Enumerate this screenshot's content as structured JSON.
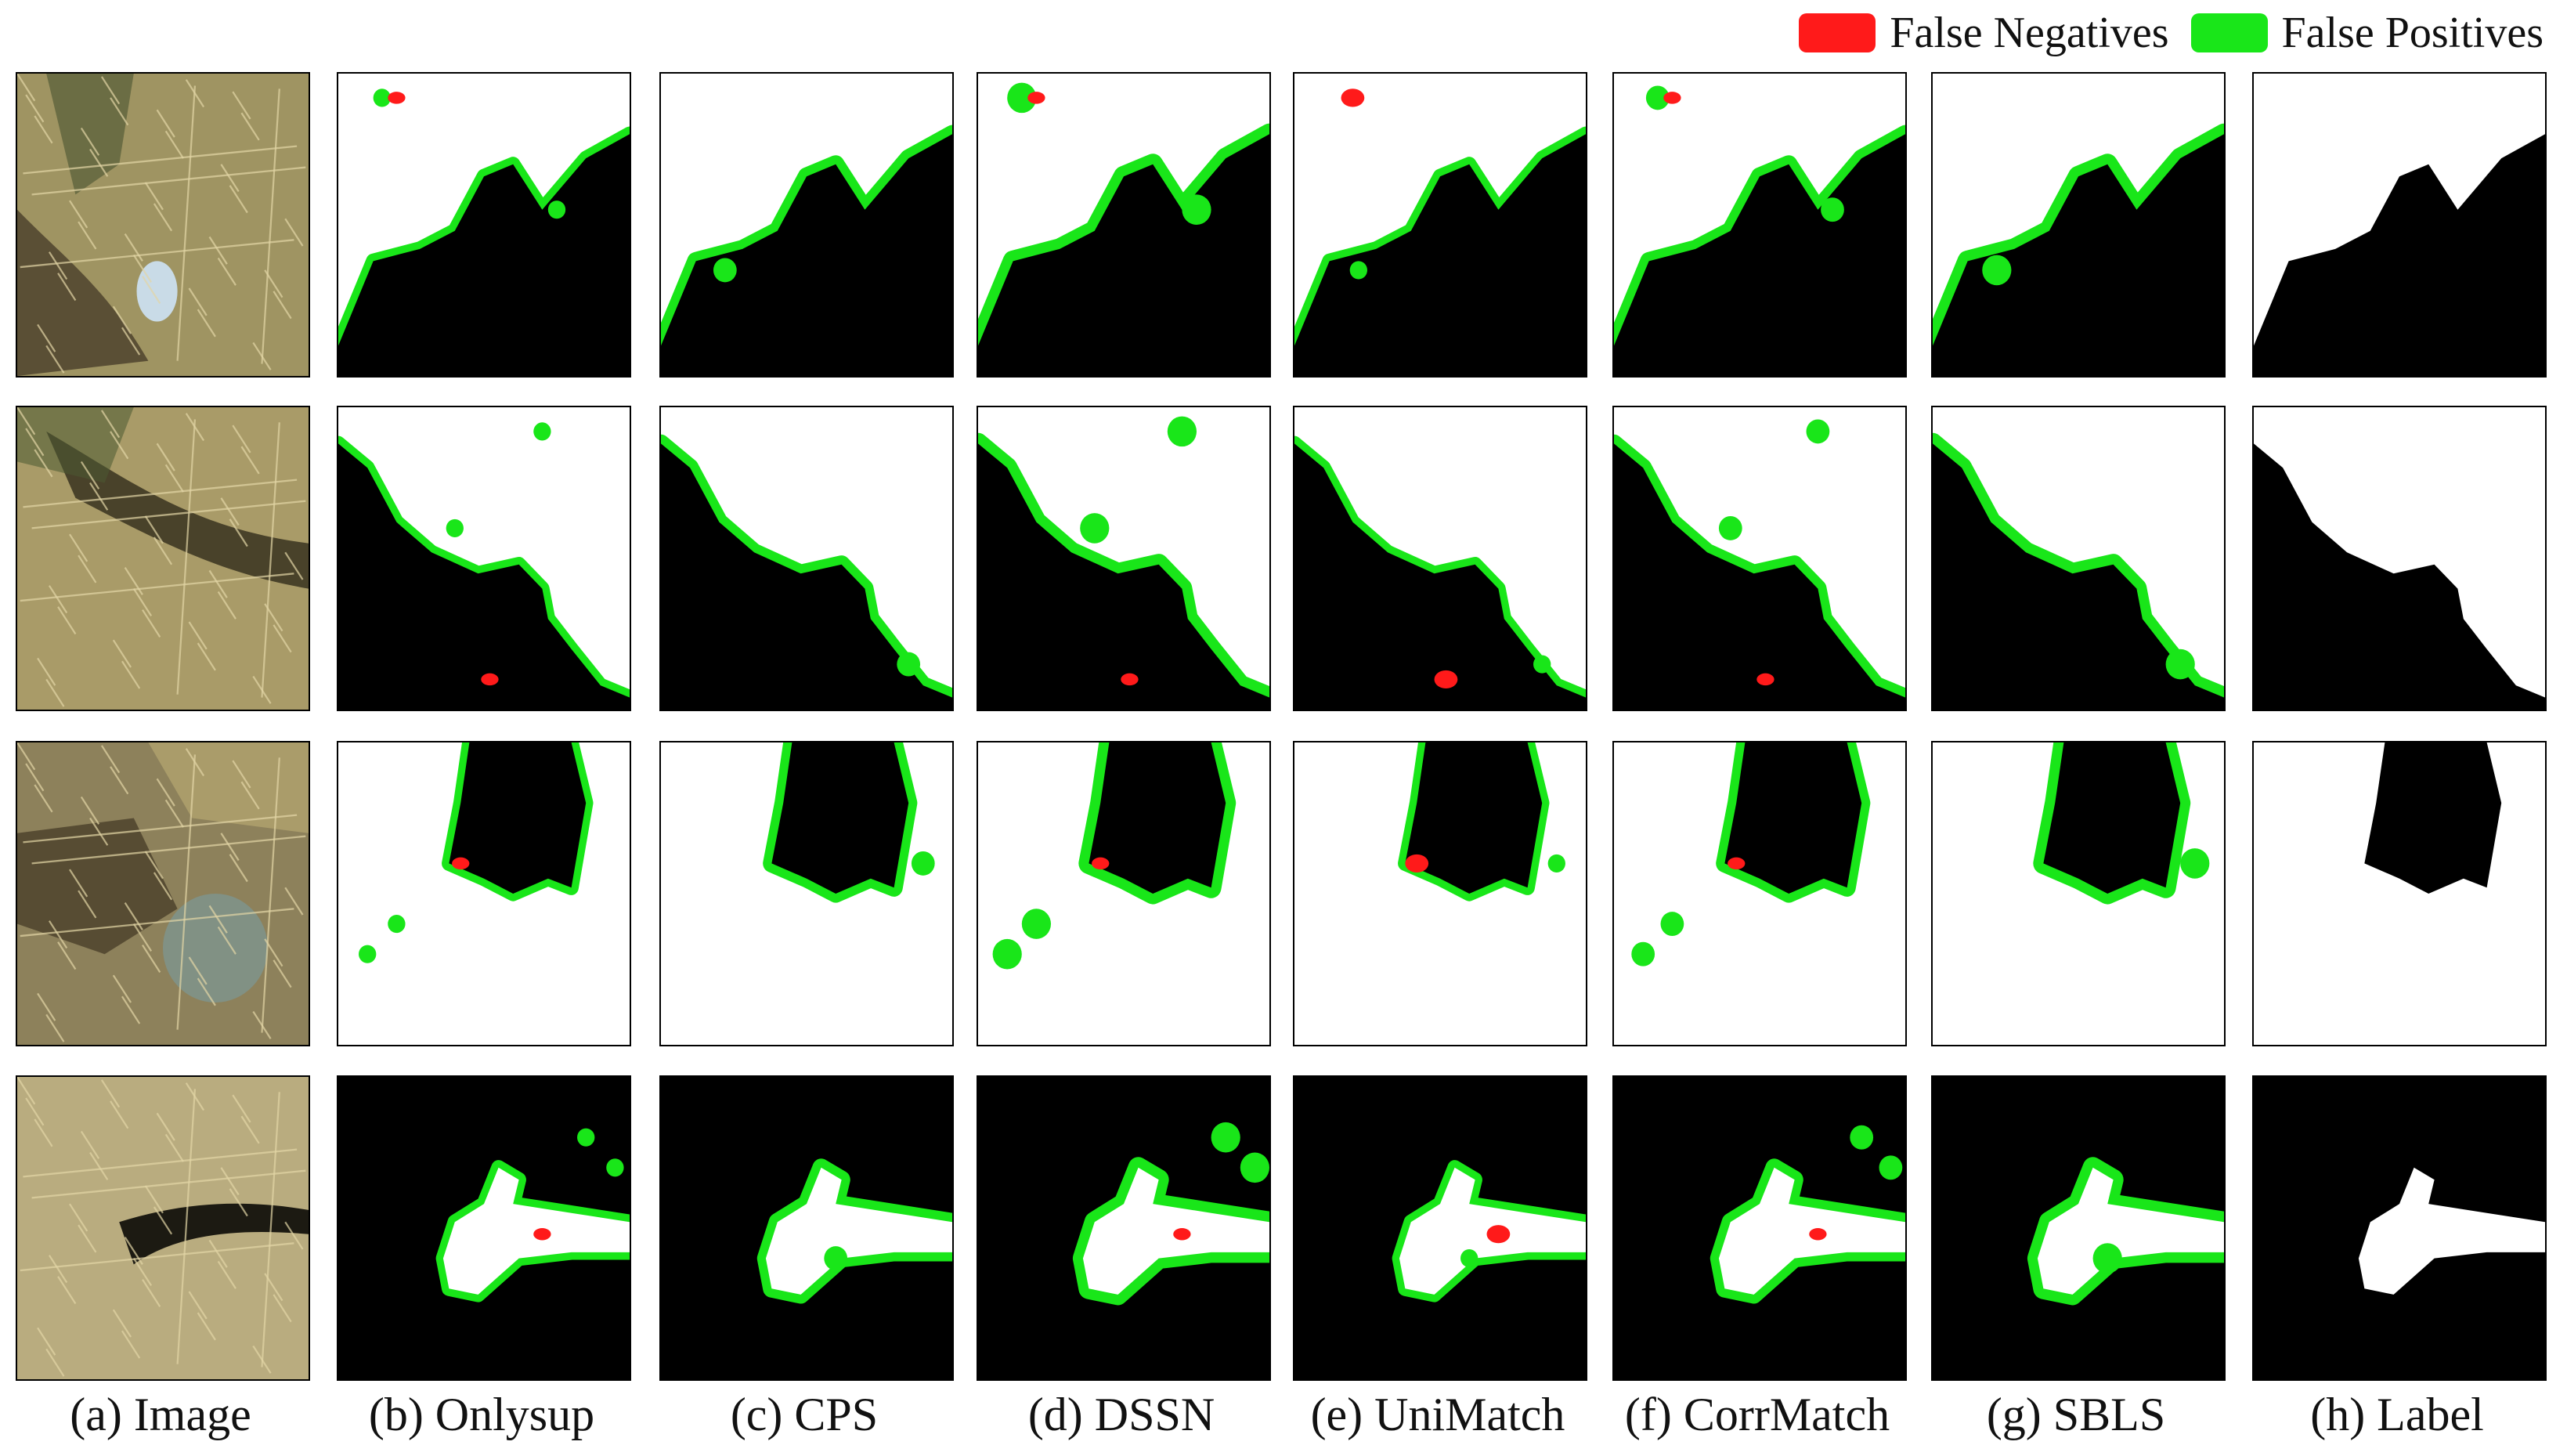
{
  "legend": {
    "false_negatives": {
      "label": "False Negatives",
      "color": "#ff1a1a"
    },
    "false_positives": {
      "label": "False Positives",
      "color": "#19e619"
    }
  },
  "captions": [
    "(a) Image",
    "(b) Onlysup",
    "(c) CPS",
    "(d) DSSN",
    "(e) UniMatch",
    "(f) CorrMatch",
    "(g) SBLS",
    "(h) Label"
  ],
  "rows": [
    {
      "scene": "photo-row-1"
    },
    {
      "scene": "photo-row-2"
    },
    {
      "scene": "photo-row-3"
    },
    {
      "scene": "photo-row-4"
    }
  ]
}
